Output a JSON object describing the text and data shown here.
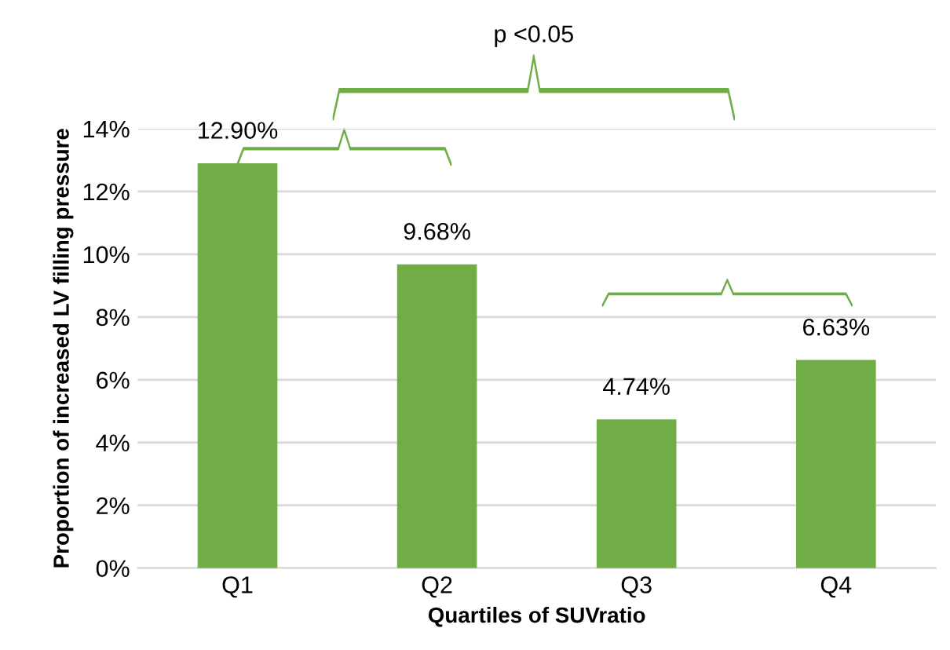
{
  "chart_data": {
    "type": "bar",
    "xlabel": "Quartiles of SUVratio",
    "ylabel": "Proportion of increased LV filling pressure",
    "categories": [
      "Q1",
      "Q2",
      "Q3",
      "Q4"
    ],
    "values": [
      12.9,
      9.68,
      4.74,
      6.63
    ],
    "value_labels": [
      "12.90%",
      "9.68%",
      "4.74%",
      "6.63%"
    ],
    "color": "#70ad47",
    "ylim": [
      0,
      14
    ],
    "yticks": [
      {
        "value": 0,
        "label": "0%"
      },
      {
        "value": 2,
        "label": "2%"
      },
      {
        "value": 4,
        "label": "4%"
      },
      {
        "value": 6,
        "label": "6%"
      },
      {
        "value": 8,
        "label": "8%"
      },
      {
        "value": 10,
        "label": "10%"
      },
      {
        "value": 12,
        "label": "12%"
      },
      {
        "value": 14,
        "label": "14%"
      }
    ],
    "grid": "y",
    "annotations": [
      "p <0.05"
    ]
  }
}
